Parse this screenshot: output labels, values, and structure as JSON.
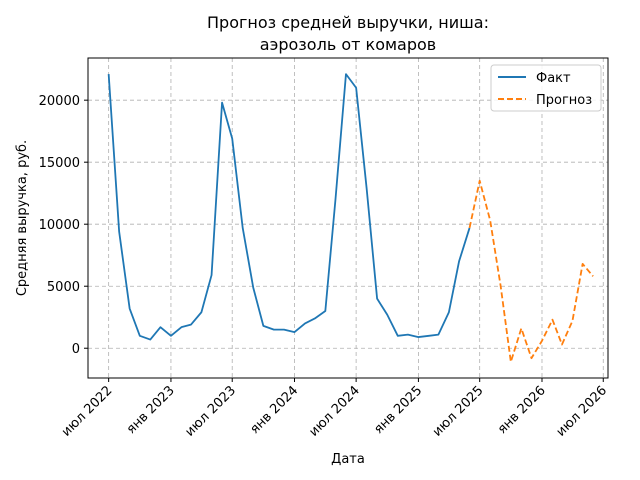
{
  "chart_data": {
    "type": "line",
    "title_lines": [
      "Прогноз средней выручки, ниша:",
      "аэрозоль от комаров"
    ],
    "xlabel": "Дата",
    "ylabel": "Средняя выручка, руб.",
    "x_axis": {
      "min": "2022-05-01",
      "max": "2026-07-15",
      "ticks": [
        {
          "date": "2022-07-01",
          "label": "июл 2022"
        },
        {
          "date": "2023-01-01",
          "label": "янв 2023"
        },
        {
          "date": "2023-07-01",
          "label": "июл 2023"
        },
        {
          "date": "2024-01-01",
          "label": "янв 2024"
        },
        {
          "date": "2024-07-01",
          "label": "июл 2024"
        },
        {
          "date": "2025-01-01",
          "label": "янв 2025"
        },
        {
          "date": "2025-07-01",
          "label": "июл 2025"
        },
        {
          "date": "2026-01-01",
          "label": "янв 2026"
        },
        {
          "date": "2026-07-01",
          "label": "июл 2026"
        }
      ]
    },
    "y_axis": {
      "min": -2400,
      "max": 23400,
      "ticks": [
        0,
        5000,
        10000,
        15000,
        20000
      ]
    },
    "grid": true,
    "legend_position": "top-right",
    "series": [
      {
        "name": "Факт",
        "color": "#1f77b4",
        "style": "solid",
        "points": [
          [
            "2022-07-01",
            22100
          ],
          [
            "2022-08-01",
            9400
          ],
          [
            "2022-09-01",
            3200
          ],
          [
            "2022-10-01",
            1000
          ],
          [
            "2022-11-01",
            700
          ],
          [
            "2022-12-01",
            1700
          ],
          [
            "2023-01-01",
            1000
          ],
          [
            "2023-02-01",
            1700
          ],
          [
            "2023-03-01",
            1900
          ],
          [
            "2023-04-01",
            2900
          ],
          [
            "2023-05-01",
            5900
          ],
          [
            "2023-06-01",
            19800
          ],
          [
            "2023-07-01",
            16900
          ],
          [
            "2023-08-01",
            9700
          ],
          [
            "2023-09-01",
            4900
          ],
          [
            "2023-10-01",
            1800
          ],
          [
            "2023-11-01",
            1500
          ],
          [
            "2023-12-01",
            1500
          ],
          [
            "2024-01-01",
            1300
          ],
          [
            "2024-02-01",
            2000
          ],
          [
            "2024-03-01",
            2400
          ],
          [
            "2024-04-01",
            3000
          ],
          [
            "2024-05-01",
            12000
          ],
          [
            "2024-06-01",
            22100
          ],
          [
            "2024-07-01",
            21000
          ],
          [
            "2024-08-01",
            12900
          ],
          [
            "2024-09-01",
            4000
          ],
          [
            "2024-10-01",
            2700
          ],
          [
            "2024-11-01",
            1000
          ],
          [
            "2024-12-01",
            1100
          ],
          [
            "2025-01-01",
            900
          ],
          [
            "2025-02-01",
            1000
          ],
          [
            "2025-03-01",
            1100
          ],
          [
            "2025-04-01",
            2900
          ],
          [
            "2025-05-01",
            7000
          ],
          [
            "2025-06-01",
            9700
          ]
        ]
      },
      {
        "name": "Прогноз",
        "color": "#ff7f0e",
        "style": "dashed",
        "points": [
          [
            "2025-06-01",
            9700
          ],
          [
            "2025-07-01",
            13500
          ],
          [
            "2025-08-01",
            10300
          ],
          [
            "2025-09-01",
            5000
          ],
          [
            "2025-10-01",
            -1100
          ],
          [
            "2025-11-01",
            1600
          ],
          [
            "2025-12-01",
            -800
          ],
          [
            "2026-01-01",
            600
          ],
          [
            "2026-02-01",
            2300
          ],
          [
            "2026-03-01",
            300
          ],
          [
            "2026-04-01",
            2200
          ],
          [
            "2026-05-01",
            6800
          ],
          [
            "2026-06-01",
            5800
          ]
        ]
      }
    ]
  }
}
